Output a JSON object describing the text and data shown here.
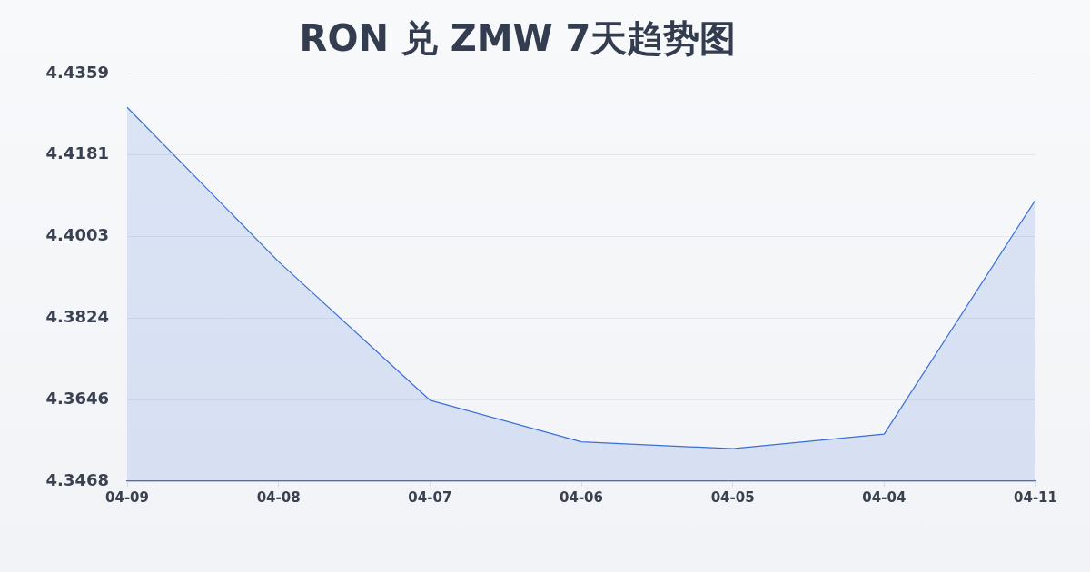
{
  "chart_data": {
    "type": "area",
    "title": "RON 兑 ZMW 7天趋势图",
    "categories": [
      "04-09",
      "04-08",
      "04-07",
      "04-06",
      "04-05",
      "04-04",
      "04-11"
    ],
    "series": [
      {
        "color": "#3a6fd8",
        "values": [
          4.4285,
          4.3948,
          4.3645,
          4.3554,
          4.3539,
          4.3571,
          4.4083
        ]
      }
    ],
    "ylim": [
      4.3468,
      4.4359
    ],
    "yticks": [
      4.3468,
      4.3646,
      4.3824,
      4.4003,
      4.4181,
      4.4359
    ],
    "grid": "y"
  }
}
